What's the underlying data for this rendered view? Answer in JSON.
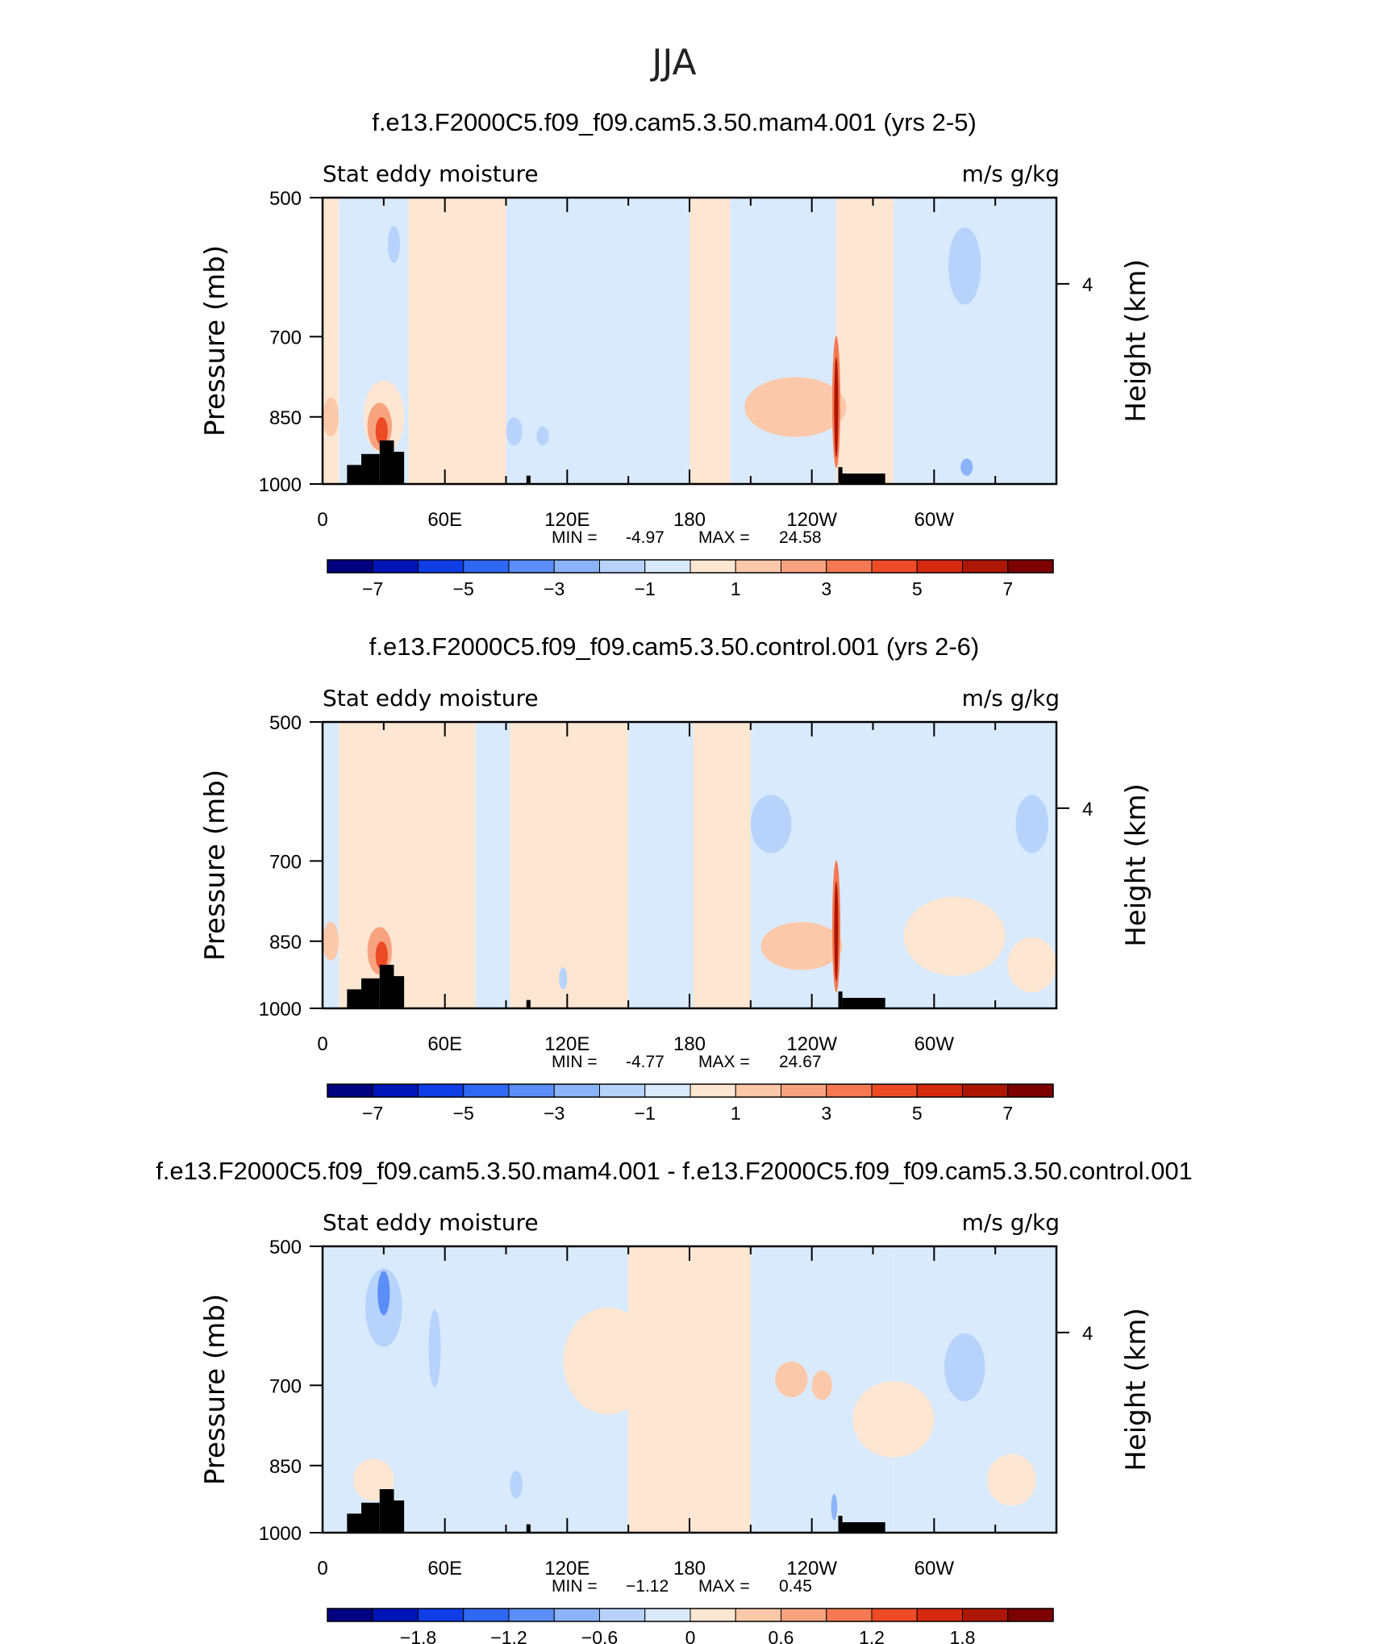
{
  "figure_title": "JJA",
  "colors": {
    "blue": [
      "#00037f",
      "#0014b8",
      "#0f3de6",
      "#2f68f2",
      "#5b8ef6",
      "#8bb3f9",
      "#b7d3fb",
      "#d9eafd"
    ],
    "red": [
      "#fde6d2",
      "#fbc9aa",
      "#f8a37f",
      "#f47952",
      "#ec4b26",
      "#d62a0f",
      "#ad1603",
      "#7c0200"
    ],
    "topography": "#000000"
  },
  "chart_data": [
    {
      "type": "heatmap",
      "title": "f.e13.F2000C5.f09_f09.cam5.3.50.mam4.001 (yrs 2-5)",
      "left_label": "Stat eddy moisture",
      "right_label": "m/s g/kg",
      "ylabel": "Pressure (mb)",
      "ylabel_right": "Height (km)",
      "y_ticks": [
        "500",
        "700",
        "850",
        "1000"
      ],
      "y_right_ticks": [
        "4"
      ],
      "x_ticks": [
        "0",
        "60E",
        "120E",
        "180",
        "120W",
        "60W"
      ],
      "stats": {
        "min_label": "MIN =",
        "min": "-4.97",
        "max_label": "MAX =",
        "max": "24.58"
      },
      "colorbar_labels": [
        "−7",
        "−5",
        "−3",
        "−1",
        "1",
        "3",
        "5",
        "7"
      ],
      "colorbar_range": [
        -8,
        8
      ],
      "contour_levels": [
        -7,
        -6,
        -5,
        -4,
        -3,
        -2,
        -1,
        0,
        1,
        2,
        3,
        4,
        5,
        6,
        7
      ],
      "y_range": [
        500,
        1000
      ],
      "x_range": [
        0,
        360
      ],
      "background_field": [
        {
          "lon": [
            0,
            8
          ],
          "value": 0.5
        },
        {
          "lon": [
            8,
            42
          ],
          "value": -0.4
        },
        {
          "lon": [
            42,
            90
          ],
          "value": 0.5
        },
        {
          "lon": [
            90,
            180
          ],
          "value": -0.5
        },
        {
          "lon": [
            180,
            200
          ],
          "value": 0.5
        },
        {
          "lon": [
            200,
            252
          ],
          "value": -0.5
        },
        {
          "lon": [
            252,
            280
          ],
          "value": 0.5
        },
        {
          "lon": [
            280,
            360
          ],
          "value": -0.5
        }
      ],
      "features": [
        {
          "lon": 30,
          "p": 850,
          "dlon": 10,
          "dp": 150,
          "value": 0.5
        },
        {
          "lon": 28,
          "p": 870,
          "dlon": 6,
          "dp": 100,
          "value": 2.5
        },
        {
          "lon": 29,
          "p": 880,
          "dlon": 3,
          "dp": 60,
          "value": 4.5
        },
        {
          "lon": 4,
          "p": 850,
          "dlon": 4,
          "dp": 80,
          "value": 1.5
        },
        {
          "lon": 35,
          "p": 560,
          "dlon": 3,
          "dp": 50,
          "value": -1.5
        },
        {
          "lon": 94,
          "p": 880,
          "dlon": 4,
          "dp": 60,
          "value": -1.5
        },
        {
          "lon": 108,
          "p": 890,
          "dlon": 3,
          "dp": 40,
          "value": -1.5
        },
        {
          "lon": 232,
          "p": 830,
          "dlon": 25,
          "dp": 120,
          "value": 1.5
        },
        {
          "lon": 252,
          "p": 820,
          "dlon": 2,
          "dp": 260,
          "value": 3.5
        },
        {
          "lon": 252,
          "p": 830,
          "dlon": 1,
          "dp": 200,
          "value": 6.5
        },
        {
          "lon": 315,
          "p": 590,
          "dlon": 8,
          "dp": 110,
          "value": -1.5
        },
        {
          "lon": 316,
          "p": 960,
          "dlon": 3,
          "dp": 40,
          "value": -2.5
        }
      ],
      "topography": [
        {
          "lon": [
            12,
            19
          ],
          "p_top": 955
        },
        {
          "lon": [
            19,
            28
          ],
          "p_top": 930
        },
        {
          "lon": [
            28,
            35
          ],
          "p_top": 900
        },
        {
          "lon": [
            35,
            40
          ],
          "p_top": 925
        },
        {
          "lon": [
            100,
            102
          ],
          "p_top": 980
        },
        {
          "lon": [
            253,
            255
          ],
          "p_top": 960
        },
        {
          "lon": [
            255,
            276
          ],
          "p_top": 975
        }
      ]
    },
    {
      "type": "heatmap",
      "title": "f.e13.F2000C5.f09_f09.cam5.3.50.control.001 (yrs 2-6)",
      "left_label": "Stat eddy moisture",
      "right_label": "m/s g/kg",
      "ylabel": "Pressure (mb)",
      "ylabel_right": "Height (km)",
      "y_ticks": [
        "500",
        "700",
        "850",
        "1000"
      ],
      "y_right_ticks": [
        "4"
      ],
      "x_ticks": [
        "0",
        "60E",
        "120E",
        "180",
        "120W",
        "60W"
      ],
      "stats": {
        "min_label": "MIN =",
        "min": "-4.77",
        "max_label": "MAX =",
        "max": "24.67"
      },
      "colorbar_labels": [
        "−7",
        "−5",
        "−3",
        "−1",
        "1",
        "3",
        "5",
        "7"
      ],
      "colorbar_range": [
        -8,
        8
      ],
      "contour_levels": [
        -7,
        -6,
        -5,
        -4,
        -3,
        -2,
        -1,
        0,
        1,
        2,
        3,
        4,
        5,
        6,
        7
      ],
      "y_range": [
        500,
        1000
      ],
      "x_range": [
        0,
        360
      ],
      "background_field": [
        {
          "lon": [
            0,
            8
          ],
          "value": -0.5
        },
        {
          "lon": [
            8,
            75
          ],
          "value": 0.5
        },
        {
          "lon": [
            75,
            92
          ],
          "value": -0.5
        },
        {
          "lon": [
            92,
            150
          ],
          "value": 0.5
        },
        {
          "lon": [
            150,
            182
          ],
          "value": -0.5
        },
        {
          "lon": [
            182,
            210
          ],
          "value": 0.5
        },
        {
          "lon": [
            210,
            252
          ],
          "value": -0.5
        },
        {
          "lon": [
            252,
            360
          ],
          "value": -0.5
        }
      ],
      "features": [
        {
          "lon": 30,
          "p": 850,
          "dlon": 10,
          "dp": 150,
          "value": 0.5
        },
        {
          "lon": 28,
          "p": 870,
          "dlon": 6,
          "dp": 100,
          "value": 2.5
        },
        {
          "lon": 29,
          "p": 880,
          "dlon": 3,
          "dp": 60,
          "value": 4.5
        },
        {
          "lon": 4,
          "p": 850,
          "dlon": 4,
          "dp": 80,
          "value": 1.5
        },
        {
          "lon": 220,
          "p": 640,
          "dlon": 10,
          "dp": 90,
          "value": -1.5
        },
        {
          "lon": 235,
          "p": 860,
          "dlon": 20,
          "dp": 100,
          "value": 1.5
        },
        {
          "lon": 252,
          "p": 820,
          "dlon": 2,
          "dp": 260,
          "value": 3.5
        },
        {
          "lon": 252,
          "p": 830,
          "dlon": 1,
          "dp": 200,
          "value": 6.5
        },
        {
          "lon": 310,
          "p": 840,
          "dlon": 25,
          "dp": 160,
          "value": 0.5
        },
        {
          "lon": 348,
          "p": 900,
          "dlon": 12,
          "dp": 120,
          "value": 0.5
        },
        {
          "lon": 348,
          "p": 640,
          "dlon": 8,
          "dp": 90,
          "value": -1.5
        },
        {
          "lon": 118,
          "p": 930,
          "dlon": 2,
          "dp": 50,
          "value": -1.5
        }
      ],
      "topography": [
        {
          "lon": [
            12,
            19
          ],
          "p_top": 955
        },
        {
          "lon": [
            19,
            28
          ],
          "p_top": 930
        },
        {
          "lon": [
            28,
            35
          ],
          "p_top": 900
        },
        {
          "lon": [
            35,
            40
          ],
          "p_top": 925
        },
        {
          "lon": [
            100,
            102
          ],
          "p_top": 980
        },
        {
          "lon": [
            253,
            255
          ],
          "p_top": 960
        },
        {
          "lon": [
            255,
            276
          ],
          "p_top": 975
        }
      ]
    },
    {
      "type": "heatmap",
      "title": "f.e13.F2000C5.f09_f09.cam5.3.50.mam4.001 - f.e13.F2000C5.f09_f09.cam5.3.50.control.001",
      "left_label": "Stat eddy moisture",
      "right_label": "m/s g/kg",
      "ylabel": "Pressure (mb)",
      "ylabel_right": "Height (km)",
      "y_ticks": [
        "500",
        "700",
        "850",
        "1000"
      ],
      "y_right_ticks": [
        "4"
      ],
      "x_ticks": [
        "0",
        "60E",
        "120E",
        "180",
        "120W",
        "60W"
      ],
      "stats": {
        "min_label": "MIN =",
        "min": "−1.12",
        "max_label": "MAX =",
        "max": "0.45"
      },
      "colorbar_labels": [
        "−1.8",
        "−1.2",
        "−0.6",
        "0",
        "0.6",
        "1.2",
        "1.8"
      ],
      "colorbar_range": [
        -2.4,
        2.4
      ],
      "contour_levels": [
        -2.1,
        -1.8,
        -1.5,
        -1.2,
        -0.9,
        -0.6,
        -0.3,
        0,
        0.3,
        0.6,
        0.9,
        1.2,
        1.5,
        1.8,
        2.1
      ],
      "y_range": [
        500,
        1000
      ],
      "x_range": [
        0,
        360
      ],
      "background_field": [
        {
          "lon": [
            0,
            110
          ],
          "value": -0.15
        },
        {
          "lon": [
            110,
            150
          ],
          "value": -0.15
        },
        {
          "lon": [
            150,
            210
          ],
          "value": 0.15
        },
        {
          "lon": [
            210,
            280
          ],
          "value": -0.15
        },
        {
          "lon": [
            280,
            360
          ],
          "value": -0.15
        }
      ],
      "features": [
        {
          "lon": 30,
          "p": 580,
          "dlon": 9,
          "dp": 110,
          "value": -0.45
        },
        {
          "lon": 30,
          "p": 560,
          "dlon": 3,
          "dp": 60,
          "value": -1.05
        },
        {
          "lon": 55,
          "p": 640,
          "dlon": 3,
          "dp": 120,
          "value": -0.45
        },
        {
          "lon": 140,
          "p": 660,
          "dlon": 22,
          "dp": 170,
          "value": 0.15
        },
        {
          "lon": 230,
          "p": 690,
          "dlon": 8,
          "dp": 60,
          "value": 0.45
        },
        {
          "lon": 245,
          "p": 700,
          "dlon": 5,
          "dp": 50,
          "value": 0.45
        },
        {
          "lon": 315,
          "p": 670,
          "dlon": 10,
          "dp": 110,
          "value": -0.45
        },
        {
          "lon": 95,
          "p": 890,
          "dlon": 3,
          "dp": 60,
          "value": -0.45
        },
        {
          "lon": 25,
          "p": 880,
          "dlon": 10,
          "dp": 90,
          "value": 0.15
        },
        {
          "lon": 338,
          "p": 880,
          "dlon": 12,
          "dp": 110,
          "value": 0.15
        },
        {
          "lon": 280,
          "p": 760,
          "dlon": 20,
          "dp": 140,
          "value": 0.15
        },
        {
          "lon": 251,
          "p": 940,
          "dlon": 1.5,
          "dp": 60,
          "value": -0.75
        }
      ],
      "topography": [
        {
          "lon": [
            12,
            19
          ],
          "p_top": 955
        },
        {
          "lon": [
            19,
            28
          ],
          "p_top": 930
        },
        {
          "lon": [
            28,
            35
          ],
          "p_top": 900
        },
        {
          "lon": [
            35,
            40
          ],
          "p_top": 925
        },
        {
          "lon": [
            100,
            102
          ],
          "p_top": 980
        },
        {
          "lon": [
            253,
            255
          ],
          "p_top": 960
        },
        {
          "lon": [
            255,
            276
          ],
          "p_top": 975
        }
      ]
    }
  ]
}
